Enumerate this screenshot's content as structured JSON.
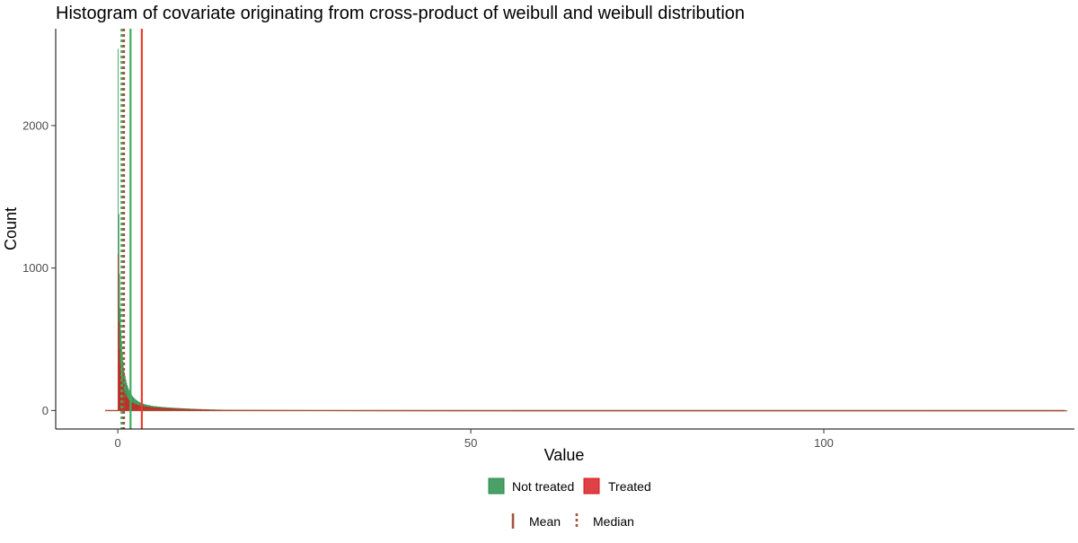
{
  "chart_data": {
    "type": "bar",
    "title": "Histogram of covariate originating from cross-product of weibull and weibull distribution",
    "xlabel": "Value",
    "ylabel": "Count",
    "xlim": [
      -8.8,
      135.5
    ],
    "ylim": [
      -130,
      2680
    ],
    "x_ticks": [
      0,
      50,
      100
    ],
    "y_ticks": [
      0,
      1000,
      2000
    ],
    "grid": false,
    "legend_position": "bottom",
    "series": [
      {
        "name": "Not treated",
        "color": "#238B45",
        "bin_start": 0,
        "bin_width": 0.1,
        "values": [
          2540,
          1380,
          960,
          720,
          560,
          470,
          400,
          345,
          300,
          268,
          240,
          215,
          195,
          178,
          163,
          150,
          138,
          128,
          119,
          111,
          104,
          97,
          91,
          86,
          81,
          77,
          73,
          69,
          66,
          63,
          60,
          57,
          55,
          53,
          51,
          49,
          47,
          45,
          44,
          42,
          41,
          40,
          39,
          38,
          37,
          36,
          35,
          34,
          33,
          32,
          31,
          31,
          30,
          30,
          29,
          29,
          28,
          28,
          27,
          27,
          26,
          26,
          25,
          25,
          24,
          24,
          24,
          23,
          23,
          22,
          22,
          22,
          21,
          21,
          21,
          20,
          20,
          20,
          19,
          19,
          19,
          18,
          18,
          18,
          18,
          17,
          17,
          17,
          16,
          16,
          16,
          16,
          15,
          15,
          15,
          15,
          14,
          14,
          14,
          14,
          13,
          13,
          13,
          13,
          12,
          12,
          12,
          12,
          12,
          11,
          11,
          11,
          11,
          11,
          10,
          10,
          10,
          10,
          10,
          9,
          9,
          9,
          9,
          9,
          9,
          8,
          8,
          8,
          8,
          8,
          8,
          7,
          7,
          7,
          7,
          7,
          7,
          7,
          6,
          6,
          6,
          6,
          6,
          6,
          6,
          6,
          5,
          5,
          5,
          5
        ]
      },
      {
        "name": "Treated",
        "color": "#D7191C",
        "bin_start": 0,
        "bin_width": 0.1,
        "values": [
          1100,
          620,
          430,
          330,
          265,
          220,
          190,
          165,
          146,
          130,
          118,
          107,
          98,
          90,
          83,
          77,
          72,
          67,
          63,
          59,
          56,
          53,
          50,
          48,
          46,
          44,
          42,
          40,
          38,
          37,
          36,
          35,
          34,
          33,
          32,
          31,
          30,
          29,
          28,
          28,
          27,
          26,
          26,
          25,
          25,
          24,
          24,
          23,
          23,
          22,
          22,
          21,
          21,
          21,
          20,
          20,
          20,
          19,
          19,
          19,
          18,
          18,
          18,
          17,
          17,
          17,
          17,
          16,
          16,
          16,
          16,
          15,
          15,
          15,
          15,
          14,
          14,
          14,
          14,
          14,
          13,
          13,
          13,
          13,
          13,
          12,
          12,
          12,
          12,
          12,
          12,
          11,
          11,
          11,
          11,
          11,
          11,
          10,
          10,
          10,
          10,
          10,
          10,
          10,
          9,
          9,
          9,
          9,
          9,
          9,
          9,
          9,
          8,
          8,
          8,
          8,
          8,
          8,
          8,
          8,
          7,
          7,
          7,
          7,
          7,
          7,
          7,
          7,
          7,
          6,
          6,
          6,
          6,
          6,
          6,
          6,
          6,
          6,
          6,
          5,
          5,
          5,
          5,
          5,
          5,
          5,
          5,
          5,
          5,
          5
        ]
      }
    ],
    "tail": {
      "x_start": 15,
      "x_end": 134,
      "step": 0.5,
      "not_treated_start": 5,
      "treated_start": 5
    },
    "reference_lines": [
      {
        "series": "Not treated",
        "stat": "Mean",
        "x": 1.8,
        "color": "#41AB5D",
        "style": "solid"
      },
      {
        "series": "Treated",
        "stat": "Mean",
        "x": 3.4,
        "color": "#EF3B2C",
        "style": "solid"
      },
      {
        "series": "Not treated",
        "stat": "Median",
        "x": 0.55,
        "color": "#41AB5D",
        "style": "dotted"
      },
      {
        "series": "Treated",
        "stat": "Median",
        "x": 0.85,
        "color": "#A0523A",
        "style": "dotted"
      }
    ],
    "legend_fill": {
      "items": [
        {
          "label": "Not treated",
          "color": "#238B45"
        },
        {
          "label": "Treated",
          "color": "#D7191C"
        }
      ]
    },
    "legend_lines": {
      "items": [
        {
          "label": "Mean",
          "style": "solid",
          "color": "#A0523A"
        },
        {
          "label": "Median",
          "style": "dotted",
          "color": "#A0523A"
        }
      ]
    }
  }
}
